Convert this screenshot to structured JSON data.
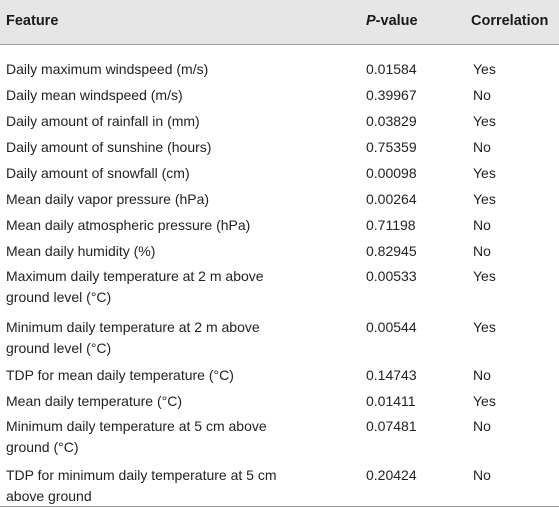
{
  "table": {
    "headers": {
      "feature": "Feature",
      "pvalue_italic": "P",
      "pvalue_rest": "-value",
      "correlation": "Correlation"
    },
    "rows": [
      {
        "feature_lines": [
          "Daily maximum windspeed (m/s)"
        ],
        "pvalue": "0.01584",
        "correlation": "Yes"
      },
      {
        "feature_lines": [
          "Daily mean windspeed (m/s)"
        ],
        "pvalue": "0.39967",
        "correlation": "No"
      },
      {
        "feature_lines": [
          "Daily amount of rainfall in (mm)"
        ],
        "pvalue": "0.03829",
        "correlation": "Yes"
      },
      {
        "feature_lines": [
          "Daily amount of sunshine (hours)"
        ],
        "pvalue": "0.75359",
        "correlation": "No"
      },
      {
        "feature_lines": [
          "Daily amount of snowfall (cm)"
        ],
        "pvalue": "0.00098",
        "correlation": "Yes"
      },
      {
        "feature_lines": [
          "Mean daily vapor pressure (hPa)"
        ],
        "pvalue": "0.00264",
        "correlation": "Yes"
      },
      {
        "feature_lines": [
          "Mean daily atmospheric pressure (hPa)"
        ],
        "pvalue": "0.71198",
        "correlation": "No"
      },
      {
        "feature_lines": [
          "Mean daily humidity (%)"
        ],
        "pvalue": "0.82945",
        "correlation": "No"
      },
      {
        "feature_lines": [
          "Maximum daily temperature at 2 m above",
          "ground level (°C)"
        ],
        "pvalue": "0.00533",
        "correlation": "Yes"
      },
      {
        "feature_lines": [
          "Minimum daily temperature at 2 m above",
          "ground level (°C)"
        ],
        "pvalue": "0.00544",
        "correlation": "Yes"
      },
      {
        "feature_lines": [
          "TDP for mean daily temperature (°C)"
        ],
        "pvalue": "0.14743",
        "correlation": "No"
      },
      {
        "feature_lines": [
          "Mean daily temperature (°C)"
        ],
        "pvalue": "0.01411",
        "correlation": "Yes"
      },
      {
        "feature_lines": [
          "Minimum daily temperature at 5 cm above",
          "ground (°C)"
        ],
        "pvalue": "0.07481",
        "correlation": "No"
      },
      {
        "feature_lines": [
          "TDP for minimum daily temperature at 5 cm",
          "above ground"
        ],
        "pvalue": "0.20424",
        "correlation": "No"
      }
    ]
  }
}
